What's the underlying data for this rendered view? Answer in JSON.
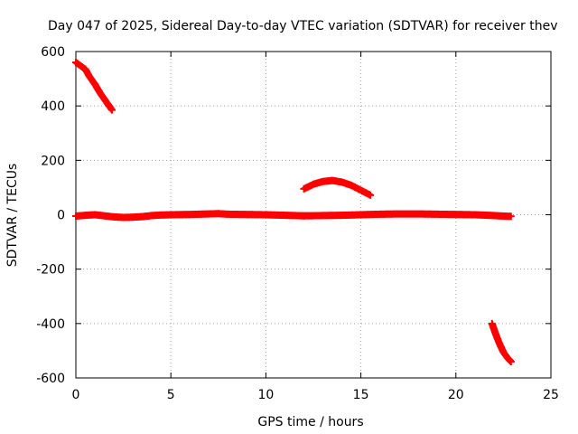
{
  "chart_data": {
    "type": "scatter",
    "title": "Day 047 of 2025, Sidereal Day-to-day VTEC variation (SDTVAR) for receiver thev",
    "xlabel": "GPS time / hours",
    "ylabel": "SDTVAR / TECUs",
    "xlim": [
      0,
      25
    ],
    "ylim": [
      -600,
      600
    ],
    "xticks": [
      0,
      5,
      10,
      15,
      20,
      25
    ],
    "yticks": [
      -600,
      -400,
      -200,
      0,
      200,
      400,
      600
    ],
    "xtick_labels": [
      "0",
      "5",
      "10",
      "15",
      "20",
      "25"
    ],
    "ytick_labels": [
      "-600",
      "-400",
      "-200",
      "0",
      "200",
      "400",
      "600"
    ],
    "grid": true,
    "marker": "plus",
    "color": "#ff0000",
    "series": [
      {
        "segment": "early-descending",
        "x": [
          0.0,
          0.1,
          0.5,
          0.7,
          1.0,
          1.3,
          1.6,
          1.9
        ],
        "y": [
          560,
          555,
          535,
          510,
          480,
          445,
          415,
          385
        ]
      },
      {
        "segment": "baseline-1",
        "x": [
          0.0,
          0.5,
          1.0,
          1.5,
          2.0,
          2.5,
          3.0,
          3.5,
          4.0,
          4.5,
          5.0,
          6.0,
          7.0,
          7.5,
          8.0,
          9.0,
          10.0,
          11.0,
          12.0
        ],
        "y": [
          -5,
          -2,
          0,
          -4,
          -8,
          -10,
          -9,
          -7,
          -3,
          -1,
          0,
          1,
          3,
          4,
          2,
          1,
          0,
          -2,
          -4
        ]
      },
      {
        "segment": "hump",
        "x": [
          12.0,
          12.5,
          13.0,
          13.5,
          14.0,
          14.5,
          15.0,
          15.5
        ],
        "y": [
          95,
          112,
          122,
          126,
          120,
          108,
          90,
          72
        ]
      },
      {
        "segment": "baseline-2",
        "x": [
          12.0,
          13.0,
          14.0,
          15.0,
          16.0,
          17.0,
          18.0,
          19.0,
          20.0,
          21.0,
          22.0,
          22.5,
          22.9
        ],
        "y": [
          -4,
          -3,
          -2,
          0,
          2,
          3,
          3,
          2,
          1,
          0,
          -3,
          -5,
          -6
        ]
      },
      {
        "segment": "late-descending",
        "x": [
          21.9,
          22.1,
          22.3,
          22.5,
          22.7,
          22.9
        ],
        "y": [
          -400,
          -440,
          -475,
          -505,
          -525,
          -540
        ]
      }
    ]
  }
}
